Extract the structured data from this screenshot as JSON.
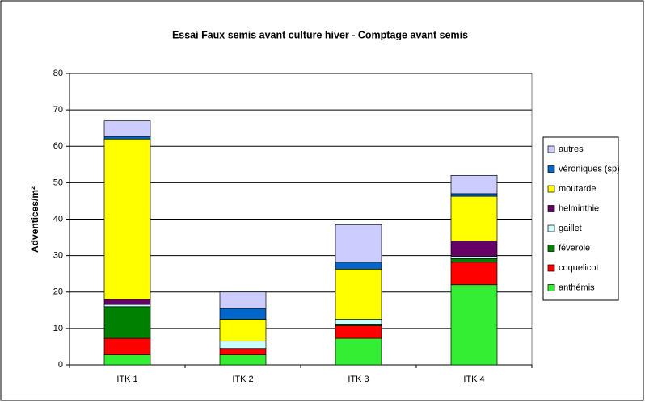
{
  "chart_data": {
    "type": "stacked_bar",
    "title": "Essai Faux semis avant culture hiver - Comptage avant semis",
    "y_label": "Adventices/m²",
    "categories": [
      "ITK 1",
      "ITK 2",
      "ITK 3",
      "ITK 4"
    ],
    "series": [
      {
        "name": "anthémis",
        "color": "#33ee33",
        "values": [
          2.8,
          2.8,
          7.3,
          22
        ]
      },
      {
        "name": "coquelicot",
        "color": "#ff0000",
        "values": [
          4.5,
          1.7,
          3.5,
          6.2
        ]
      },
      {
        "name": "féverole",
        "color": "#008000",
        "values": [
          8.7,
          0,
          0.4,
          1
        ]
      },
      {
        "name": "gaillet",
        "color": "#ccffff",
        "values": [
          0.6,
          2,
          1.3,
          0.6
        ]
      },
      {
        "name": "helminthie",
        "color": "#660066",
        "values": [
          1.4,
          0,
          0,
          4.2
        ]
      },
      {
        "name": "moutarde",
        "color": "#ffff00",
        "values": [
          44,
          6,
          13.8,
          12.3
        ]
      },
      {
        "name": "véroniques (sp)",
        "color": "#0066cc",
        "values": [
          0.7,
          3,
          1.9,
          0.7
        ]
      },
      {
        "name": "autres",
        "color": "#ccccff",
        "values": [
          4.3,
          4.5,
          10.3,
          5
        ]
      }
    ],
    "ylim": [
      0,
      80
    ],
    "yticks": [
      0,
      10,
      20,
      30,
      40,
      50,
      60,
      70,
      80
    ],
    "grid": true,
    "legend": "right"
  }
}
